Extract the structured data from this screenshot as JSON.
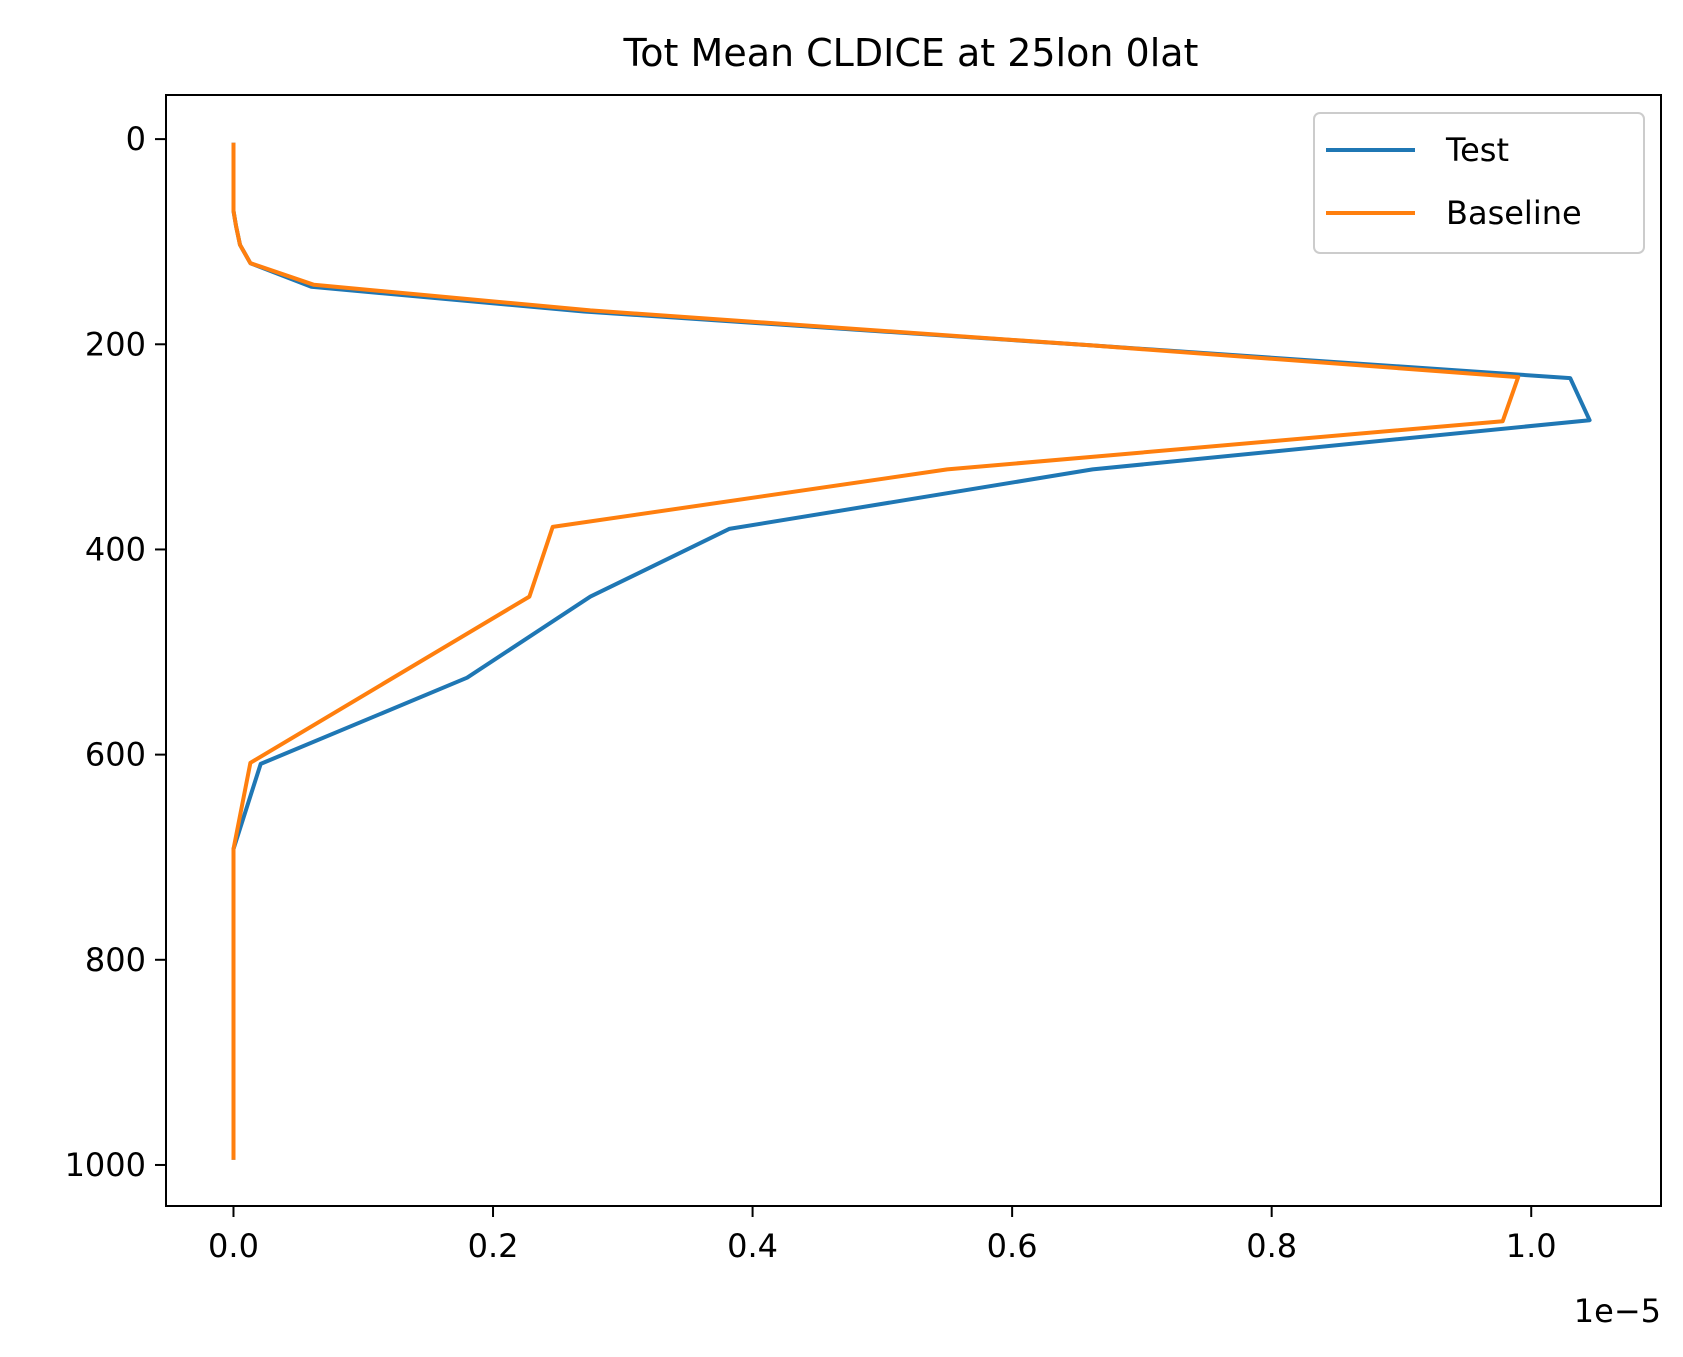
{
  "chart_data": {
    "type": "line",
    "title": "Tot Mean CLDICE at 25lon 0lat",
    "xlabel": "",
    "ylabel": "",
    "x_offset_label": "1e−5",
    "xlim": [
      -0.052,
      1.1
    ],
    "ylim": [
      1040,
      -43
    ],
    "x_ticks": [
      0.0,
      0.2,
      0.4,
      0.6,
      0.8,
      1.0
    ],
    "x_tick_labels": [
      "0.0",
      "0.2",
      "0.4",
      "0.6",
      "0.8",
      "1.0"
    ],
    "y_ticks": [
      0,
      200,
      400,
      600,
      800,
      1000
    ],
    "y_tick_labels": [
      "0",
      "200",
      "400",
      "600",
      "800",
      "1000"
    ],
    "legend_position": "top-right",
    "grid": false,
    "series": [
      {
        "name": "Test",
        "color": "#1f77b4",
        "points": [
          {
            "x": 0.0,
            "y": 3.6
          },
          {
            "x": 0.0,
            "y": 30
          },
          {
            "x": 0.0,
            "y": 50
          },
          {
            "x": 0.0,
            "y": 70
          },
          {
            "x": 0.002,
            "y": 85
          },
          {
            "x": 0.005,
            "y": 103
          },
          {
            "x": 0.013,
            "y": 121
          },
          {
            "x": 0.06,
            "y": 144
          },
          {
            "x": 0.27,
            "y": 168
          },
          {
            "x": 0.66,
            "y": 201
          },
          {
            "x": 1.03,
            "y": 233
          },
          {
            "x": 1.045,
            "y": 274
          },
          {
            "x": 0.662,
            "y": 322
          },
          {
            "x": 0.382,
            "y": 380
          },
          {
            "x": 0.275,
            "y": 446
          },
          {
            "x": 0.18,
            "y": 525
          },
          {
            "x": 0.021,
            "y": 609
          },
          {
            "x": 0.0,
            "y": 692
          },
          {
            "x": 0.0,
            "y": 800
          },
          {
            "x": 0.0,
            "y": 900
          },
          {
            "x": 0.0,
            "y": 995
          }
        ]
      },
      {
        "name": "Baseline",
        "color": "#ff7f0e",
        "points": [
          {
            "x": 0.0,
            "y": 3.6
          },
          {
            "x": 0.0,
            "y": 30
          },
          {
            "x": 0.0,
            "y": 50
          },
          {
            "x": 0.0,
            "y": 70
          },
          {
            "x": 0.002,
            "y": 85
          },
          {
            "x": 0.005,
            "y": 103
          },
          {
            "x": 0.013,
            "y": 121
          },
          {
            "x": 0.062,
            "y": 142
          },
          {
            "x": 0.275,
            "y": 167
          },
          {
            "x": 0.66,
            "y": 201
          },
          {
            "x": 0.99,
            "y": 232
          },
          {
            "x": 0.978,
            "y": 275
          },
          {
            "x": 0.55,
            "y": 322
          },
          {
            "x": 0.246,
            "y": 378
          },
          {
            "x": 0.228,
            "y": 446
          },
          {
            "x": 0.013,
            "y": 608
          },
          {
            "x": 0.0,
            "y": 692
          },
          {
            "x": 0.0,
            "y": 800
          },
          {
            "x": 0.0,
            "y": 900
          },
          {
            "x": 0.0,
            "y": 995
          }
        ]
      }
    ]
  }
}
